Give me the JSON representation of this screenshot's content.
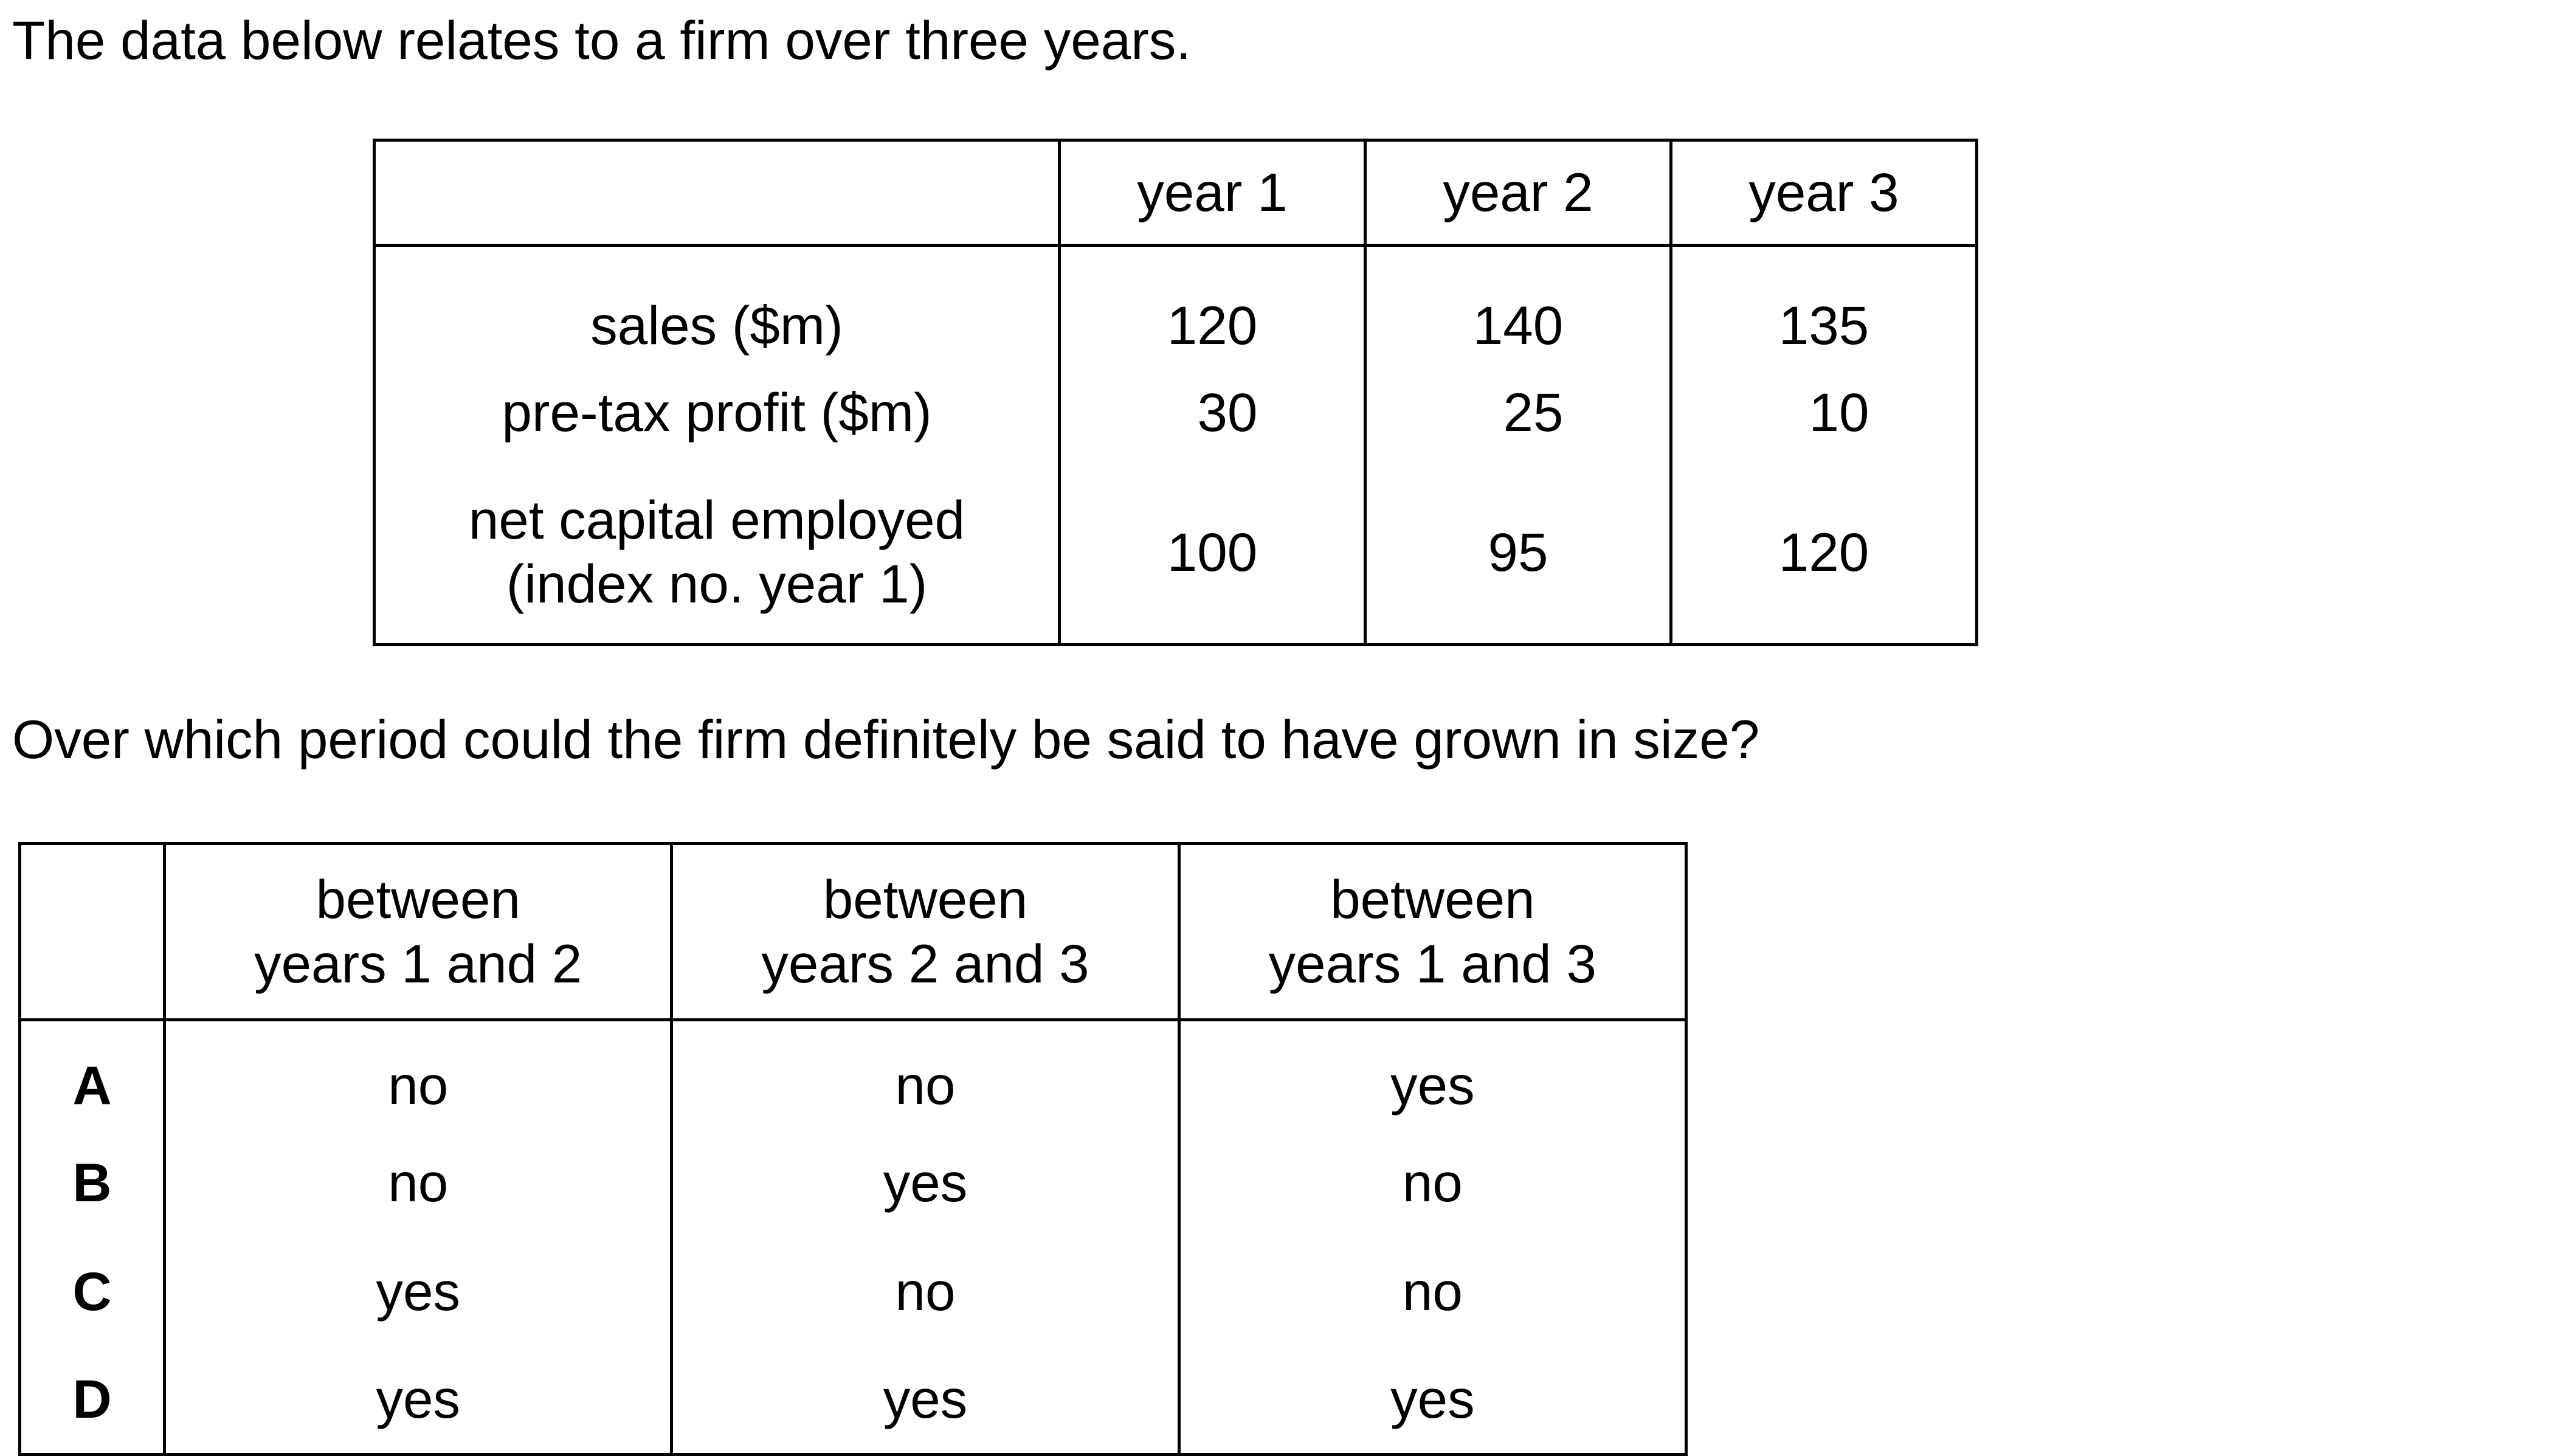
{
  "intro": "The data below relates to a firm over three years.",
  "data_table": {
    "headers": [
      "",
      "year 1",
      "year 2",
      "year 3"
    ],
    "rows": [
      {
        "label": "sales ($m)",
        "values": [
          "120",
          "140",
          "135"
        ]
      },
      {
        "label": "pre-tax profit ($m)",
        "values": [
          "30",
          "25",
          "10"
        ]
      },
      {
        "label_line1": "net capital employed",
        "label_line2": "(index no. year 1)",
        "values": [
          "100",
          "95",
          "120"
        ]
      }
    ]
  },
  "question": "Over which period could the firm definitely be said to have grown in size?",
  "answer_table": {
    "headers": [
      {
        "line1": "between",
        "line2": "years 1 and 2"
      },
      {
        "line1": "between",
        "line2": "years 2 and 3"
      },
      {
        "line1": "between",
        "line2": "years 1 and 3"
      }
    ],
    "options": [
      {
        "key": "A",
        "values": [
          "no",
          "no",
          "yes"
        ]
      },
      {
        "key": "B",
        "values": [
          "no",
          "yes",
          "no"
        ]
      },
      {
        "key": "C",
        "values": [
          "yes",
          "no",
          "no"
        ]
      },
      {
        "key": "D",
        "values": [
          "yes",
          "yes",
          "yes"
        ]
      }
    ]
  }
}
